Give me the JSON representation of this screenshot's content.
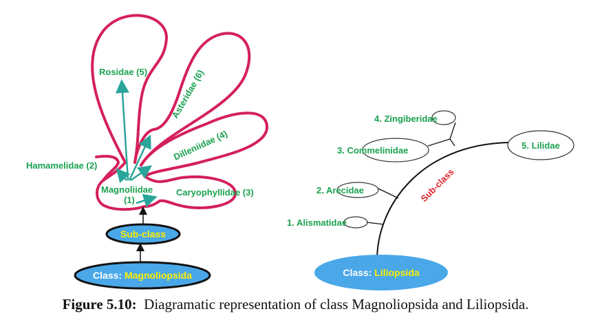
{
  "left": {
    "class_prefix": "Class: ",
    "class_name": "Magnoliopsida",
    "subclass_label": "Sub-class",
    "center_label_line1": "Magnoliidae",
    "center_label_line2": "(1)",
    "groups": {
      "hamamelidae": "Hamamelidae (2)",
      "caryophyllidae": "Caryophyllidae (3)",
      "dilleniidae": "Dilleniidae (4)",
      "rosidae": "Rosidae (5)",
      "asteridae": "Asteridae (6)"
    }
  },
  "right": {
    "class_prefix": "Class: ",
    "class_name": "Liliopsida",
    "subclass_label": "Sub-class",
    "groups": {
      "alismatidae": "1. Alismatidae",
      "arecidae": "2. Arecidae",
      "commelinidae": "3. Commelinidae",
      "zingiberidae": "4. Zingiberidae",
      "lilidae": "5. Lilidae"
    }
  },
  "caption": {
    "number": "Figure 5.10:",
    "text": "Diagramatic representation of class Magnoliopsida and Liliopsida."
  },
  "colors": {
    "petal_outline": "#d4205a",
    "arrow": "#2aa59a",
    "label_green": "#1aa150",
    "label_red": "#e0202a",
    "ellipse_fill": "#4aa8e8",
    "class_name_text": "#ffee00"
  }
}
